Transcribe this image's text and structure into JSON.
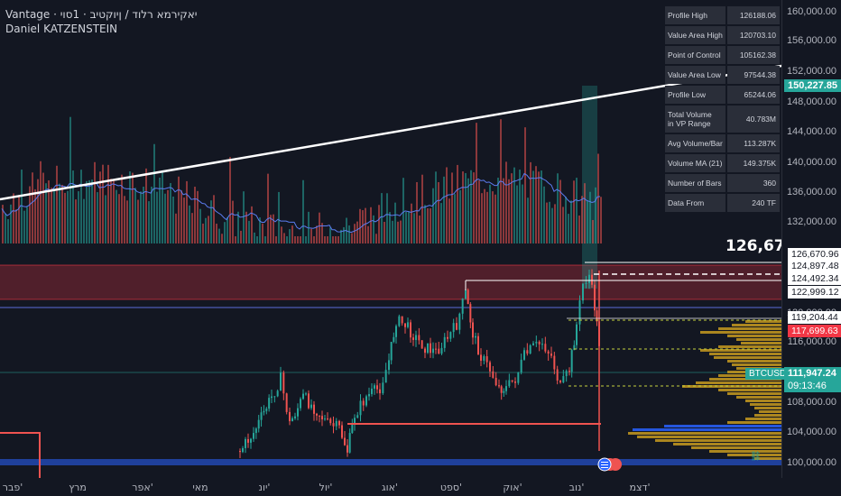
{
  "header": {
    "title": "Vantage · יאקירמא רלוד / ןיוקטיב · 1סוי",
    "author": "Daniel KATZENSTEIN"
  },
  "stats_table": [
    {
      "label": "Profile High",
      "value": "126188.06"
    },
    {
      "label": "Value Area High",
      "value": "120703.10"
    },
    {
      "label": "Point of Control",
      "value": "105162.38"
    },
    {
      "label": "Value Area Low",
      "value": "97544.38"
    },
    {
      "label": "Profile Low",
      "value": "65244.06"
    },
    {
      "label": "Total Volume\nin VP Range",
      "value": "40.783M"
    },
    {
      "label": "Avg Volume/Bar",
      "value": "113.287K"
    },
    {
      "label": "Volume MA (21)",
      "value": "149.375K"
    },
    {
      "label": "Number of Bars",
      "value": "360"
    },
    {
      "label": "Data From",
      "value": "240 TF"
    }
  ],
  "price_axis": {
    "ticks": [
      "160,000.00",
      "156,000.00",
      "152,000.00",
      "148,000.00",
      "144,000.00",
      "140,000.00",
      "136,000.00",
      "132,000.00",
      "120,000.00",
      "116,000.00",
      "108,000.00",
      "104,000.00",
      "100,000.00"
    ],
    "labels": {
      "trendline": "150,227.85",
      "ath_big": "126,67",
      "ath": "126,670.96",
      "level_1": "124,897.48",
      "level_2": "124,492.34",
      "level_3": "122,999.12",
      "level_4": "119,204.44",
      "level_5": "117,699.63",
      "symbol": "BTCUSD",
      "last_price": "111,947.24",
      "countdown": "09:13:46"
    }
  },
  "time_axis": [
    "פבר'",
    "מרץ",
    "אפר'",
    "מאי",
    "יונ'",
    "יול'",
    "אוג'",
    "ספט'",
    "אוק'",
    "נוב'",
    "דצמ'"
  ],
  "colors": {
    "background": "#131722",
    "up": "#26a69a",
    "down": "#ef5350",
    "trendline": "#ffffff",
    "vp_bars": "#c79a1e",
    "poc": "#2962ff"
  },
  "chart_data": {
    "type": "candlestick",
    "symbol": "BTCUSD",
    "ylim": [
      99000,
      161000
    ],
    "profile_high": 126188.06,
    "value_area_high": 120703.1,
    "point_of_control": 105162.38,
    "value_area_low": 97544.38,
    "profile_low": 65244.06,
    "last_price": 111947.24,
    "trendline_price": 150227.85
  }
}
